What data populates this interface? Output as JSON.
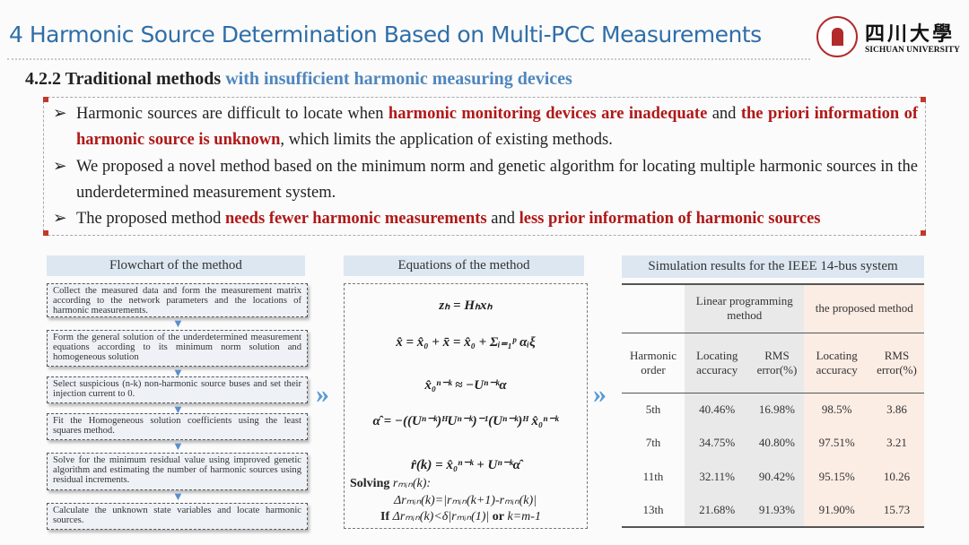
{
  "header": {
    "title": "4 Harmonic Source Determination Based on Multi-PCC Measurements",
    "logo_cn": "四川大學",
    "logo_en": "SICHUAN UNIVERSITY"
  },
  "subtitle": {
    "black": "4.2.2 Traditional methods",
    "blue": " with insufficient harmonic measuring devices"
  },
  "bullets": [
    [
      {
        "t": "Harmonic sources are difficult to locate when "
      },
      {
        "t": "harmonic monitoring devices are inadequate",
        "hl": true
      },
      {
        "t": " and "
      },
      {
        "t": "the priori information of harmonic source is unknown",
        "hl": true
      },
      {
        "t": ", which limits the application of existing methods."
      }
    ],
    [
      {
        "t": "We proposed a novel method based on the minimum norm and genetic algorithm for locating multiple harmonic sources in the underdetermined measurement system."
      }
    ],
    [
      {
        "t": "The proposed method "
      },
      {
        "t": "needs fewer harmonic measurements",
        "hl": true
      },
      {
        "t": " and "
      },
      {
        "t": "less prior information of harmonic sources",
        "hl": true
      }
    ]
  ],
  "bullet_marker": "➢",
  "flowchart": {
    "title": "Flowchart of the method",
    "steps": [
      "Collect the measured data and form the measurement matrix according to the network parameters and the locations of harmonic measurements.",
      "Form the general solution of the underdetermined measurement equations according to its minimum norm solution and homogeneous solution",
      "Select suspicious (n-k) non-harmonic source buses and set their injection current to 0.",
      "Fit the Homogeneous solution coefficients using the least squares method.",
      "Solve for the minimum residual value using improved genetic algorithm and estimating the number of harmonic sources using residual increments.",
      "Calculate the unknown state variables and locate harmonic sources."
    ]
  },
  "equations": {
    "title": "Equations of the method",
    "items": [
      "zₕ = Hₕxₕ",
      "x̂ = x̂₀ + x̄ = x̂₀ + Σᵢ₌₁ᵖ αᵢξ",
      "x̂₀ⁿ⁻ᵏ ≈ −Uⁿ⁻ᵏα",
      "α̂ = −((Uⁿ⁻ᵏ)ᴴUⁿ⁻ᵏ)⁻¹(Uⁿ⁻ᵏ)ᴴ x̂₀ⁿ⁻ᵏ",
      "r̂(k) = x̂₀ⁿ⁻ᵏ + Uⁿ⁻ᵏα̂"
    ],
    "solving_label": "Solving",
    "solving_var": "rₘᵢₙ(k):",
    "delta": "Δrₘᵢₙ(k)=|rₘᵢₙ(k+1)-rₘᵢₙ(k)|",
    "cond_if": "If",
    "cond": " Δrₘᵢₙ(k)<δ|rₘᵢₙ(1)| ",
    "cond_or": "or",
    "cond_end": " k=m-1"
  },
  "table": {
    "title": "Simulation results for the IEEE 14-bus system",
    "group_headers": [
      "Linear programming method",
      "the proposed method"
    ],
    "columns": [
      "Harmonic order",
      "Locating accuracy",
      "RMS error(%)",
      "Locating accuracy",
      "RMS error(%)"
    ],
    "rows": [
      [
        "5th",
        "40.46%",
        "16.98%",
        "98.5%",
        "3.86"
      ],
      [
        "7th",
        "34.75%",
        "40.80%",
        "97.51%",
        "3.21"
      ],
      [
        "11th",
        "32.11%",
        "90.42%",
        "95.15%",
        "10.26"
      ],
      [
        "13th",
        "21.68%",
        "91.93%",
        "91.90%",
        "15.73"
      ]
    ]
  },
  "colors": {
    "title": "#2f6ea8",
    "highlight": "#b01818",
    "subtitle_blue": "#4f86bd",
    "panel_head": "#dce7f2"
  },
  "icons": {
    "flow_arrow": "arrow-down-icon",
    "section_arrow": "double-chevron-right-icon"
  }
}
